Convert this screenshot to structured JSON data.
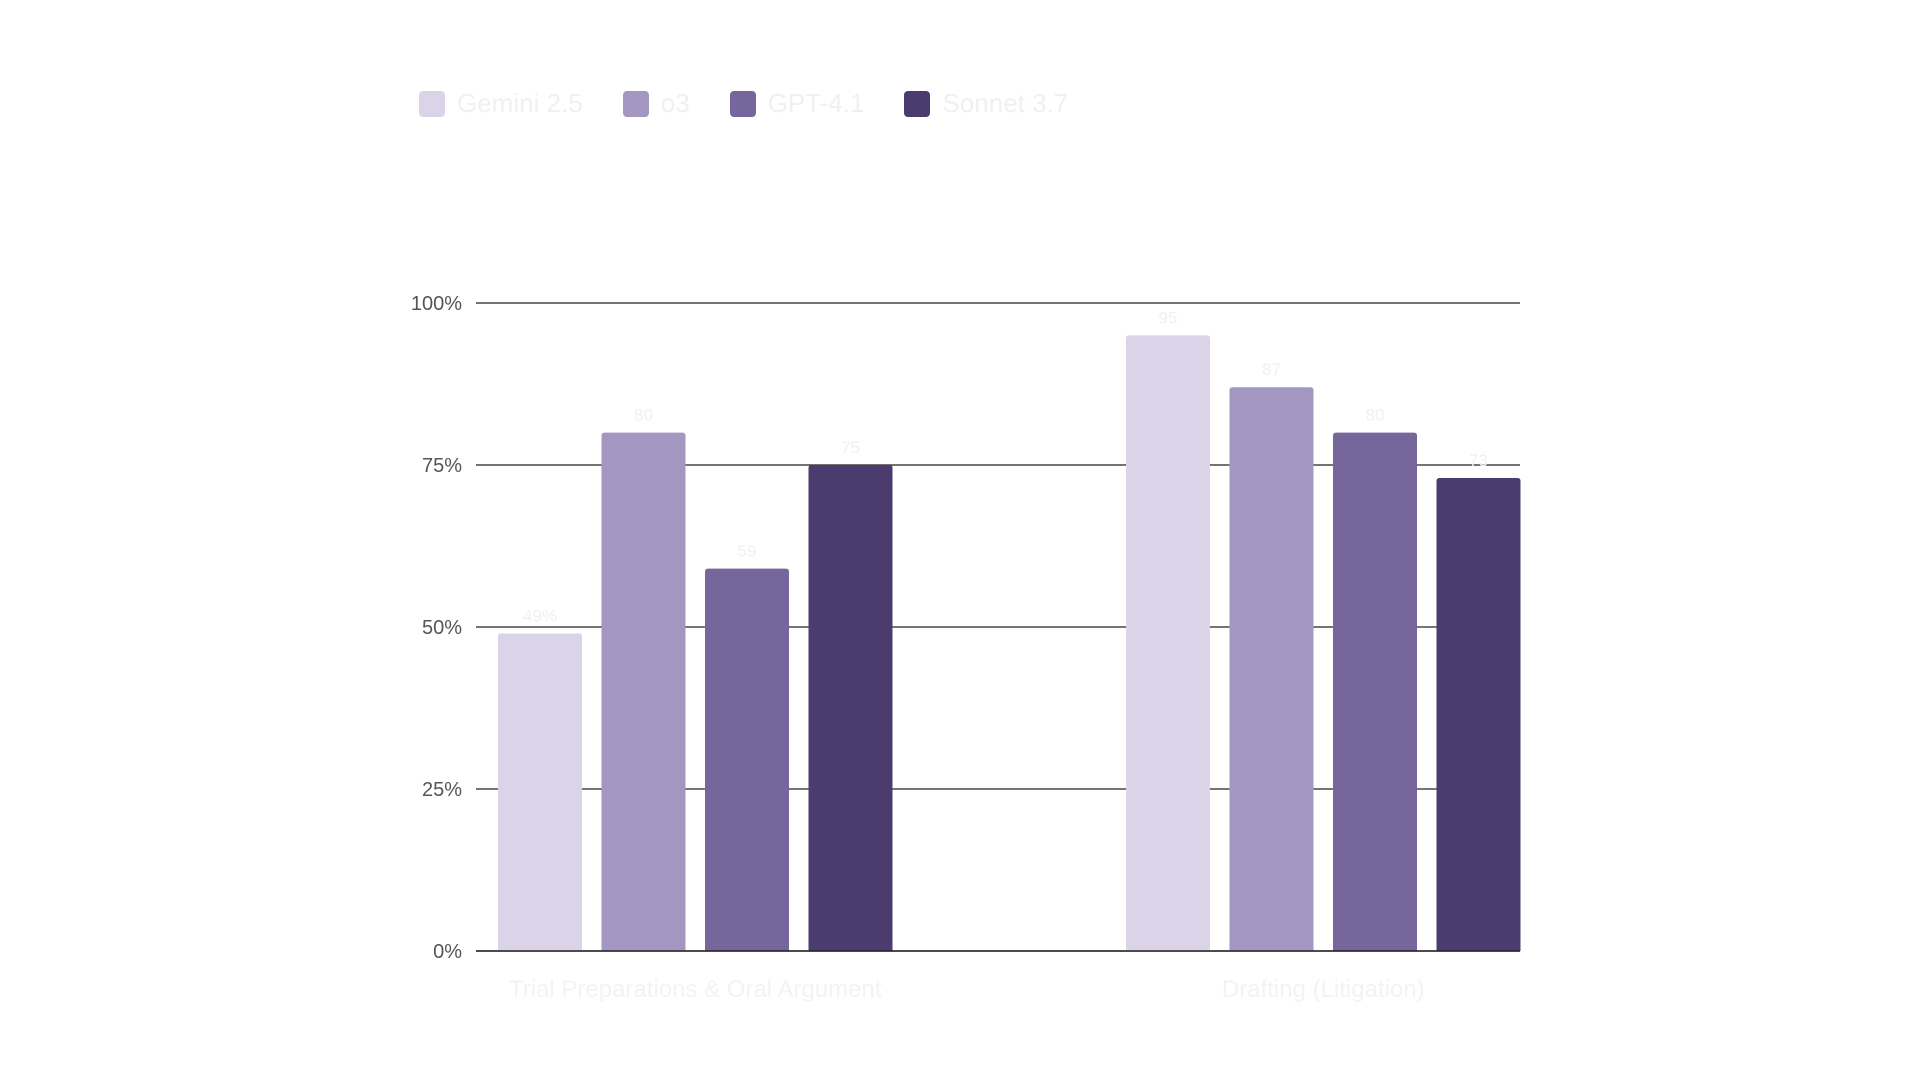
{
  "chart_data": {
    "type": "bar",
    "categories": [
      "Trial Preparations & Oral Argument",
      "Drafting (Litigation)"
    ],
    "series": [
      {
        "name": "Gemini 2.5",
        "values": [
          49,
          95
        ],
        "labels": [
          "49%",
          "95"
        ],
        "color": "#dbd4e8"
      },
      {
        "name": "o3",
        "values": [
          80,
          87
        ],
        "labels": [
          "80",
          "87"
        ],
        "color": "#a397c2"
      },
      {
        "name": "GPT-4.1",
        "values": [
          59,
          80
        ],
        "labels": [
          "59",
          "80"
        ],
        "color": "#77669b"
      },
      {
        "name": "Sonnet 3.7",
        "values": [
          75,
          73
        ],
        "labels": [
          "75",
          "73"
        ],
        "color": "#4c3b6e"
      }
    ],
    "ylim": [
      0,
      100
    ],
    "yticks": [
      0,
      25,
      50,
      75,
      100
    ],
    "ytick_labels": [
      "0%",
      "25%",
      "50%",
      "75%",
      "100%"
    ],
    "grid": true,
    "legend_position": "top-left",
    "title": "",
    "xlabel": "",
    "ylabel": ""
  }
}
